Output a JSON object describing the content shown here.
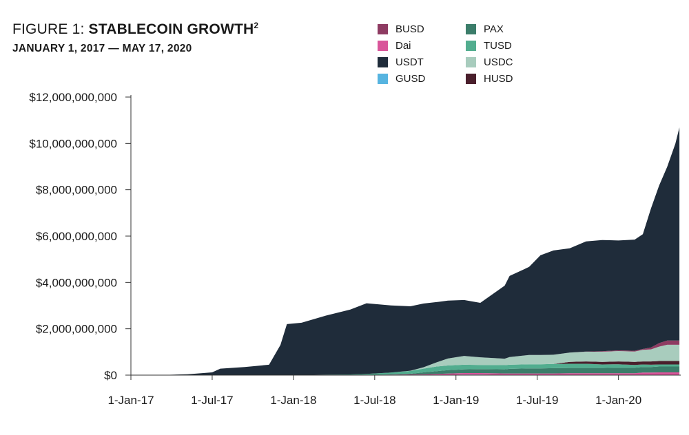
{
  "chart_data": {
    "type": "area",
    "stacked": true,
    "title_prefix": "FIGURE 1: ",
    "title_main": "STABLECOIN GROWTH",
    "title_sup": "2",
    "subtitle": "JANUARY 1, 2017 — MAY 17, 2020",
    "xlabel": "",
    "ylabel": "",
    "ylim": [
      0,
      12000000000
    ],
    "y_ticks": [
      0,
      2000000000,
      4000000000,
      6000000000,
      8000000000,
      10000000000,
      12000000000
    ],
    "y_tick_labels": [
      "$0",
      "$2,000,000,000",
      "$4,000,000,000",
      "$6,000,000,000",
      "$8,000,000,000",
      "$10,000,000,000",
      "$12,000,000,000"
    ],
    "x_domain": [
      2017.0,
      2020.4
    ],
    "x_ticks": [
      2017.0,
      2017.5,
      2018.0,
      2018.5,
      2019.0,
      2019.5,
      2020.0
    ],
    "x_tick_labels": [
      "1-Jan-17",
      "1-Jul-17",
      "1-Jan-18",
      "1-Jul-18",
      "1-Jan-19",
      "1-Jul-19",
      "1-Jan-20"
    ],
    "legend": [
      {
        "name": "BUSD",
        "color": "#8e3b62"
      },
      {
        "name": "PAX",
        "color": "#3b7d6a"
      },
      {
        "name": "Dai",
        "color": "#d9559a"
      },
      {
        "name": "TUSD",
        "color": "#52ad8f"
      },
      {
        "name": "USDT",
        "color": "#1f2c3a"
      },
      {
        "name": "USDC",
        "color": "#a8ccbd"
      },
      {
        "name": "GUSD",
        "color": "#56b4e0"
      },
      {
        "name": "HUSD",
        "color": "#4a1f2c"
      }
    ],
    "x": [
      2017.0,
      2017.2,
      2017.35,
      2017.5,
      2017.55,
      2017.7,
      2017.85,
      2017.92,
      2017.96,
      2018.05,
      2018.2,
      2018.35,
      2018.45,
      2018.6,
      2018.72,
      2018.8,
      2018.88,
      2018.95,
      2019.05,
      2019.15,
      2019.3,
      2019.33,
      2019.45,
      2019.52,
      2019.6,
      2019.7,
      2019.8,
      2019.9,
      2020.0,
      2020.1,
      2020.15,
      2020.2,
      2020.25,
      2020.3,
      2020.35,
      2020.375
    ],
    "series": [
      {
        "name": "GUSD",
        "color": "#56b4e0",
        "values": [
          0,
          0,
          0,
          0,
          0,
          0,
          0,
          0,
          0,
          0,
          0,
          0,
          0,
          0,
          0,
          0,
          0,
          5000000,
          20000000,
          20000000,
          10000000,
          10000000,
          10000000,
          10000000,
          10000000,
          10000000,
          10000000,
          10000000,
          10000000,
          10000000,
          10000000,
          10000000,
          10000000,
          10000000,
          10000000,
          10000000
        ]
      },
      {
        "name": "Dai",
        "color": "#d9559a",
        "values": [
          0,
          0,
          0,
          0,
          0,
          0,
          0,
          0,
          0,
          0,
          0,
          0,
          0,
          20000000,
          30000000,
          40000000,
          50000000,
          60000000,
          70000000,
          70000000,
          60000000,
          60000000,
          60000000,
          60000000,
          60000000,
          70000000,
          70000000,
          70000000,
          70000000,
          70000000,
          100000000,
          100000000,
          110000000,
          110000000,
          110000000,
          110000000
        ]
      },
      {
        "name": "PAX",
        "color": "#3b7d6a",
        "values": [
          0,
          0,
          0,
          0,
          0,
          0,
          0,
          0,
          0,
          0,
          0,
          0,
          0,
          10000000,
          30000000,
          80000000,
          120000000,
          150000000,
          160000000,
          170000000,
          180000000,
          200000000,
          220000000,
          220000000,
          230000000,
          230000000,
          230000000,
          230000000,
          240000000,
          240000000,
          240000000,
          240000000,
          250000000,
          250000000,
          250000000,
          250000000
        ]
      },
      {
        "name": "TUSD",
        "color": "#52ad8f",
        "values": [
          0,
          0,
          0,
          0,
          0,
          0,
          0,
          0,
          0,
          10000000,
          20000000,
          30000000,
          50000000,
          80000000,
          120000000,
          160000000,
          200000000,
          200000000,
          200000000,
          180000000,
          180000000,
          180000000,
          180000000,
          180000000,
          180000000,
          180000000,
          180000000,
          150000000,
          150000000,
          120000000,
          110000000,
          100000000,
          90000000,
          90000000,
          90000000,
          90000000
        ]
      },
      {
        "name": "HUSD",
        "color": "#4a1f2c",
        "values": [
          0,
          0,
          0,
          0,
          0,
          0,
          0,
          0,
          0,
          0,
          0,
          0,
          0,
          0,
          0,
          0,
          0,
          0,
          0,
          0,
          0,
          0,
          0,
          0,
          0,
          80000000,
          100000000,
          110000000,
          120000000,
          130000000,
          130000000,
          140000000,
          150000000,
          150000000,
          150000000,
          150000000
        ]
      },
      {
        "name": "USDC",
        "color": "#a8ccbd",
        "values": [
          0,
          0,
          0,
          0,
          0,
          0,
          0,
          0,
          0,
          0,
          0,
          0,
          0,
          0,
          10000000,
          60000000,
          180000000,
          300000000,
          380000000,
          330000000,
          280000000,
          330000000,
          400000000,
          400000000,
          400000000,
          400000000,
          420000000,
          440000000,
          450000000,
          450000000,
          500000000,
          520000000,
          620000000,
          700000000,
          700000000,
          700000000
        ]
      },
      {
        "name": "BUSD",
        "color": "#8e3b62",
        "values": [
          0,
          0,
          0,
          0,
          0,
          0,
          0,
          0,
          0,
          0,
          0,
          0,
          0,
          0,
          0,
          0,
          0,
          0,
          0,
          0,
          0,
          0,
          0,
          0,
          0,
          0,
          10000000,
          20000000,
          30000000,
          30000000,
          40000000,
          80000000,
          150000000,
          180000000,
          180000000,
          180000000
        ]
      },
      {
        "name": "USDT",
        "color": "#1f2c3a",
        "values": [
          10000000,
          10000000,
          40000000,
          120000000,
          280000000,
          350000000,
          450000000,
          1300000000,
          2200000000,
          2250000000,
          2550000000,
          2800000000,
          3050000000,
          2900000000,
          2780000000,
          2750000000,
          2600000000,
          2500000000,
          2410000000,
          2350000000,
          3150000000,
          3500000000,
          3800000000,
          4300000000,
          4500000000,
          4500000000,
          4750000000,
          4800000000,
          4740000000,
          4800000000,
          4950000000,
          6000000000,
          6800000000,
          7500000000,
          8500000000,
          9200000000
        ]
      }
    ]
  }
}
